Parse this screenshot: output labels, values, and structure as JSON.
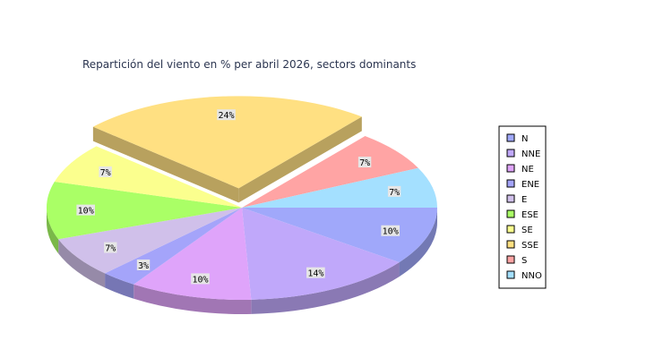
{
  "chart_data": {
    "type": "pie",
    "title": "Repartición del viento en % per abril 2026, sectors dominants",
    "categories": [
      "N",
      "NNE",
      "NE",
      "ENE",
      "E",
      "ESE",
      "SE",
      "SSE",
      "S",
      "NNO"
    ],
    "values": [
      10,
      14,
      10,
      3,
      7,
      10,
      7,
      24,
      7,
      7
    ],
    "labels": [
      "10%",
      "14%",
      "10%",
      "3%",
      "7%",
      "10%",
      "7%",
      "24%",
      "7%",
      "7%"
    ],
    "colors": [
      "#a0a8fa",
      "#c0a8fa",
      "#dfa4fa",
      "#a4a4fa",
      "#d0c0ea",
      "#aaff66",
      "#fbff8e",
      "#ffe082",
      "#ffa4a4",
      "#a4e0ff"
    ],
    "exploded": "SSE",
    "legend_position": "right"
  }
}
